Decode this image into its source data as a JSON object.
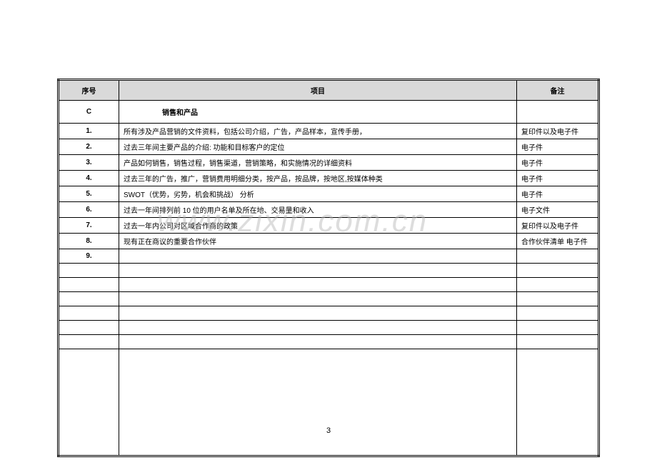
{
  "header": {
    "col_seq": "序号",
    "col_item": "项目",
    "col_note": "备注"
  },
  "section": {
    "code": "C",
    "title": "销售和产品"
  },
  "rows": [
    {
      "num": "1.",
      "item": "所有涉及产品营销的文件资料，包括公司介绍，广告，产品样本，宣传手册，",
      "note": "复印件以及电子件"
    },
    {
      "num": "2.",
      "item": "过去三年间主要产品的介绍: 功能和目标客户的定位",
      "note": "电子件"
    },
    {
      "num": "3.",
      "item": "产品如何销售，销售过程，销售渠道，营销策略，和实施情况的详细资料",
      "note": "电子件"
    },
    {
      "num": "4.",
      "item": "过去三年的广告，推广，营销费用明细分类，按产品，按品牌，按地区,按媒体种类",
      "note": "电子件"
    },
    {
      "num": "5.",
      "item": "SWOT（优势，劣势，机会和挑战） 分析",
      "note": "电子件"
    },
    {
      "num": "6.",
      "item": "过去一年间排列前 10 位的用户名单及所在地、交易量和收入",
      "note": "电子文件"
    },
    {
      "num": "7.",
      "item": "过去一年内公司对区域合作商的政策",
      "note": "复印件以及电子件"
    },
    {
      "num": "8.",
      "item": "现有正在商议的重要合作伙伴",
      "note": "合作伙伴清单 电子件"
    },
    {
      "num": "9.",
      "item": "",
      "note": ""
    }
  ],
  "blank_rows": 6,
  "watermark": "www.zixin.com.cn",
  "page_number": "3"
}
